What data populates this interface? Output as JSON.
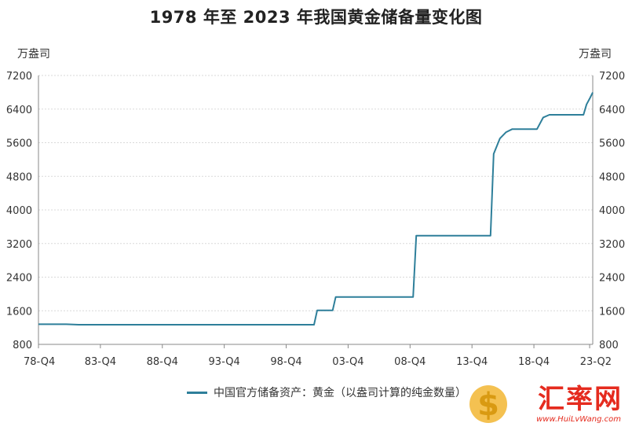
{
  "chart_data": {
    "type": "line",
    "title": "1978 年至 2023 年我国黄金储备量变化图",
    "ylabel_left": "万盎司",
    "ylabel_right": "万盎司",
    "ylim": [
      800,
      7200
    ],
    "yticks": [
      800,
      1600,
      2400,
      3200,
      4000,
      4800,
      5600,
      6400,
      7200
    ],
    "xticks": [
      "78-Q4",
      "83-Q4",
      "88-Q4",
      "93-Q4",
      "98-Q4",
      "03-Q4",
      "08-Q4",
      "13-Q4",
      "18-Q4",
      "23-Q2"
    ],
    "grid": true,
    "legend_position": "bottom",
    "series": [
      {
        "name": "中国官方储备资产：黄金（以盎司计算的纯金数量）",
        "color": "#2e7f9a",
        "x": [
          1978.75,
          1981.0,
          1982.0,
          2001.0,
          2001.25,
          2002.5,
          2002.75,
          2009.0,
          2009.25,
          2015.25,
          2015.5,
          2016.0,
          2016.5,
          2017.0,
          2019.0,
          2019.5,
          2020.0,
          2022.75,
          2023.0,
          2023.25,
          2023.5
        ],
        "values": [
          1280,
          1280,
          1267,
          1267,
          1608,
          1608,
          1929,
          1929,
          3389,
          3389,
          5332,
          5700,
          5850,
          5924,
          5924,
          6200,
          6264,
          6264,
          6512,
          6650,
          6795
        ]
      }
    ]
  },
  "watermark": {
    "text": "汇率网",
    "url": "www.HuiLvWang.com"
  },
  "colors": {
    "series": "#2e7f9a",
    "grid": "#d9d9d9",
    "axis": "#888888",
    "watermark": "#e52b1e"
  }
}
